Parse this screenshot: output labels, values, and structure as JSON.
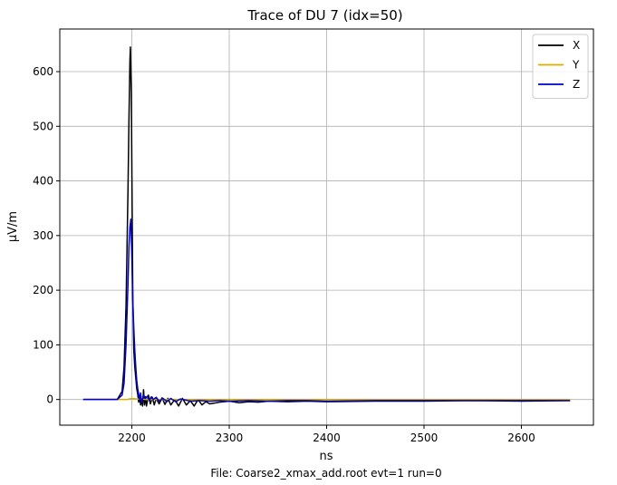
{
  "chart_data": {
    "type": "line",
    "title": "Trace of DU 7 (idx=50)",
    "xlabel": "ns",
    "ylabel": "μV/m",
    "footer": "File: Coarse2_xmax_add.root evt=1 run=0",
    "xlim": [
      2126,
      2674
    ],
    "ylim": [
      -47,
      678
    ],
    "xticks": [
      2200,
      2300,
      2400,
      2500,
      2600
    ],
    "yticks": [
      0,
      100,
      200,
      300,
      400,
      500,
      600
    ],
    "grid": true,
    "legend_position": "top-right",
    "series": [
      {
        "name": "X",
        "color": "#000000",
        "x": [
          2150,
          2185,
          2190,
          2192,
          2194,
          2196,
          2197,
          2198,
          2198.5,
          2199,
          2199.5,
          2200,
          2200.5,
          2201,
          2202,
          2203,
          2204,
          2205,
          2206,
          2207,
          2208,
          2209,
          2210,
          2211,
          2212,
          2213,
          2214,
          2215,
          2217,
          2219,
          2221,
          2223,
          2225,
          2228,
          2231,
          2234,
          2237,
          2240,
          2244,
          2248,
          2252,
          2256,
          2260,
          2264,
          2268,
          2272,
          2276,
          2280,
          2290,
          2300,
          2310,
          2320,
          2330,
          2340,
          2360,
          2380,
          2400,
          2450,
          2500,
          2550,
          2600,
          2650
        ],
        "y": [
          0,
          0,
          15,
          60,
          170,
          380,
          510,
          620,
          645,
          600,
          560,
          420,
          300,
          180,
          90,
          60,
          40,
          20,
          10,
          -5,
          5,
          -10,
          0,
          -12,
          18,
          -10,
          5,
          -12,
          8,
          -8,
          4,
          -10,
          2,
          -8,
          3,
          -9,
          2,
          -10,
          0,
          -12,
          2,
          -10,
          -2,
          -12,
          0,
          -10,
          -4,
          -8,
          -5,
          -3,
          -6,
          -4,
          -5,
          -3,
          -4,
          -3,
          -4,
          -3,
          -3,
          -2,
          -3,
          -2
        ]
      },
      {
        "name": "Y",
        "color": "#d4b000",
        "x": [
          2150,
          2195,
          2200,
          2205,
          2215,
          2650
        ],
        "y": [
          0,
          0,
          2,
          1,
          0,
          0
        ]
      },
      {
        "name": "Z",
        "color": "#0000cc",
        "x": [
          2150,
          2185,
          2190,
          2192,
          2194,
          2196,
          2197,
          2198,
          2199,
          2200,
          2201,
          2202,
          2203,
          2204,
          2205,
          2206,
          2207,
          2208,
          2209,
          2210,
          2212,
          2214,
          2216,
          2218,
          2220,
          2222,
          2225,
          2228,
          2232,
          2236,
          2240,
          2245,
          2250,
          2260,
          2270,
          2280,
          2290,
          2300,
          2320,
          2340,
          2360,
          2380,
          2400,
          2450,
          2500,
          2550,
          2600,
          2650
        ],
        "y": [
          0,
          0,
          8,
          30,
          100,
          210,
          280,
          315,
          330,
          260,
          180,
          130,
          90,
          60,
          35,
          20,
          10,
          0,
          12,
          -6,
          8,
          2,
          6,
          -2,
          5,
          0,
          4,
          -3,
          2,
          -4,
          2,
          -4,
          1,
          -3,
          -2,
          -3,
          -2,
          -3,
          -2,
          -3,
          -2,
          -2,
          -3,
          -2,
          -2,
          -2,
          -2,
          -2
        ]
      }
    ]
  }
}
